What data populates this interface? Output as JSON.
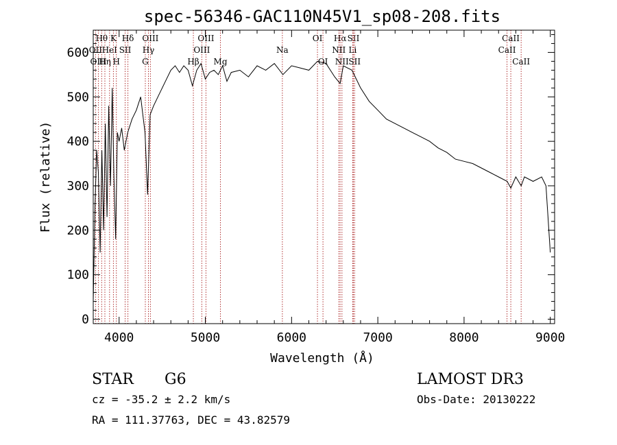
{
  "chart_data": {
    "type": "line",
    "title": "spec-56346-GAC110N45V1_sp08-208.fits",
    "xlabel": "Wavelength (Å)",
    "ylabel": "Flux (relative)",
    "xlim": [
      3700,
      9050
    ],
    "ylim": [
      -10,
      650
    ],
    "x_ticks": [
      4000,
      5000,
      6000,
      7000,
      8000,
      9000
    ],
    "y_ticks": [
      0,
      100,
      200,
      300,
      400,
      500,
      600
    ],
    "series": [
      {
        "name": "flux",
        "x": [
          3700,
          3720,
          3740,
          3760,
          3780,
          3800,
          3820,
          3840,
          3860,
          3880,
          3900,
          3920,
          3940,
          3960,
          3980,
          4000,
          4030,
          4060,
          4100,
          4150,
          4200,
          4250,
          4300,
          4330,
          4360,
          4400,
          4450,
          4500,
          4550,
          4600,
          4650,
          4700,
          4750,
          4800,
          4850,
          4900,
          4950,
          5000,
          5050,
          5100,
          5150,
          5200,
          5250,
          5300,
          5400,
          5500,
          5600,
          5700,
          5800,
          5900,
          6000,
          6100,
          6200,
          6300,
          6400,
          6500,
          6563,
          6600,
          6700,
          6800,
          6900,
          7000,
          7100,
          7200,
          7300,
          7400,
          7500,
          7600,
          7700,
          7800,
          7900,
          8000,
          8100,
          8200,
          8300,
          8400,
          8500,
          8542,
          8600,
          8662,
          8700,
          8800,
          8900,
          8950,
          9000
        ],
        "y": [
          40,
          250,
          380,
          330,
          150,
          380,
          200,
          440,
          230,
          480,
          300,
          520,
          320,
          180,
          420,
          400,
          430,
          380,
          420,
          450,
          470,
          500,
          420,
          280,
          460,
          480,
          500,
          520,
          540,
          560,
          570,
          555,
          570,
          560,
          525,
          560,
          575,
          540,
          555,
          560,
          550,
          570,
          535,
          555,
          560,
          545,
          570,
          560,
          575,
          550,
          570,
          565,
          560,
          580,
          575,
          545,
          530,
          570,
          560,
          520,
          490,
          470,
          450,
          440,
          430,
          420,
          410,
          400,
          385,
          375,
          360,
          355,
          350,
          340,
          330,
          320,
          310,
          295,
          320,
          300,
          320,
          310,
          320,
          300,
          150
        ]
      }
    ],
    "lines": [
      {
        "label": "Hθ",
        "x": 3798,
        "row": 0
      },
      {
        "label": "OII",
        "x": 3727,
        "row": 1
      },
      {
        "label": "OIII",
        "x": 3760,
        "row": 2
      },
      {
        "label": "Hη",
        "x": 3835,
        "row": 2
      },
      {
        "label": "HeI",
        "x": 3889,
        "row": 1
      },
      {
        "label": "K",
        "x": 3934,
        "row": 0
      },
      {
        "label": "H",
        "x": 3968,
        "row": 2
      },
      {
        "label": "SII",
        "x": 4070,
        "row": 1
      },
      {
        "label": "Hδ",
        "x": 4102,
        "row": 0
      },
      {
        "label": "OIII",
        "x": 4363,
        "row": 0
      },
      {
        "label": "Hγ",
        "x": 4340,
        "row": 1
      },
      {
        "label": "G",
        "x": 4304,
        "row": 2
      },
      {
        "label": "Hβ",
        "x": 4861,
        "row": 2
      },
      {
        "label": "OIII",
        "x": 5007,
        "row": 0
      },
      {
        "label": "OIII",
        "x": 4959,
        "row": 1
      },
      {
        "label": "Mg",
        "x": 5175,
        "row": 2
      },
      {
        "label": "Na",
        "x": 5893,
        "row": 1
      },
      {
        "label": "OI",
        "x": 6300,
        "row": 0
      },
      {
        "label": "OI",
        "x": 6364,
        "row": 2
      },
      {
        "label": "Hα",
        "x": 6563,
        "row": 0
      },
      {
        "label": "NII",
        "x": 6548,
        "row": 1
      },
      {
        "label": "NII",
        "x": 6584,
        "row": 2
      },
      {
        "label": "SII",
        "x": 6717,
        "row": 0
      },
      {
        "label": "Li",
        "x": 6708,
        "row": 1
      },
      {
        "label": "SII",
        "x": 6731,
        "row": 2
      },
      {
        "label": "CaII",
        "x": 8542,
        "row": 0
      },
      {
        "label": "CaII",
        "x": 8498,
        "row": 1
      },
      {
        "label": "CaII",
        "x": 8662,
        "row": 2
      }
    ]
  },
  "info": {
    "object_class": "STAR",
    "subclass": "G6",
    "survey": "LAMOST DR3",
    "redshift": "cz = -35.2 ± 2.2 km/s",
    "obs_date": "Obs-Date: 20130222",
    "coords": "RA = 111.37763, DEC =  43.82579"
  },
  "colors": {
    "line_marker": "#b03030",
    "spectrum": "#000000",
    "axis": "#000000"
  }
}
